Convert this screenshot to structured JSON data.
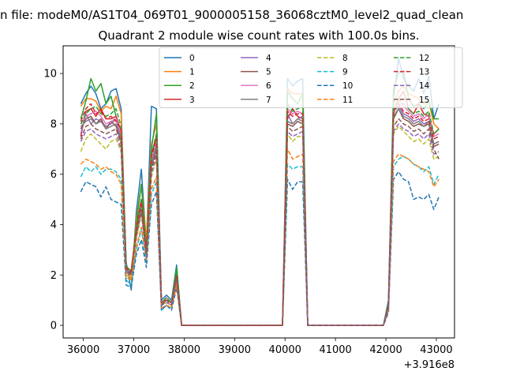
{
  "suptitle": "n file: modeM0/AS1T04_069T01_9000005158_36068cztM0_level2_quad_clean",
  "chart_data": {
    "type": "line",
    "title": "Quadrant 2 module wise count rates with 100.0s bins.",
    "xlabel": "",
    "ylabel": "",
    "x_offset_label": "+3.916e8",
    "xlim": [
      35600,
      43360
    ],
    "ylim": [
      -0.5,
      11.1
    ],
    "xticks": [
      36000,
      37000,
      38000,
      39000,
      40000,
      41000,
      42000,
      43000
    ],
    "yticks": [
      0,
      2,
      4,
      6,
      8,
      10
    ],
    "grid": false,
    "legend_position": "upper-center",
    "legend_columns": 4,
    "x": [
      35950,
      36050,
      36150,
      36250,
      36350,
      36450,
      36550,
      36650,
      36750,
      36850,
      36950,
      37050,
      37150,
      37250,
      37350,
      37450,
      37550,
      37650,
      37750,
      37850,
      37950,
      38050,
      38150,
      38250,
      38350,
      38450,
      38550,
      38650,
      38750,
      38850,
      38950,
      39050,
      39150,
      39250,
      39350,
      39450,
      39550,
      39650,
      39750,
      39850,
      39950,
      40050,
      40150,
      40250,
      40350,
      40450,
      40550,
      40650,
      40750,
      40850,
      40950,
      41050,
      41150,
      41250,
      41350,
      41450,
      41550,
      41650,
      41750,
      41850,
      41950,
      42050,
      42150,
      42250,
      42350,
      42450,
      42550,
      42650,
      42750,
      42850,
      42950,
      43050
    ],
    "series": [
      {
        "name": "0",
        "color": "#1f77b4",
        "dash": "solid",
        "values": [
          8.8,
          9.2,
          9.5,
          9.2,
          8.6,
          8.8,
          9.3,
          9.4,
          8.6,
          2.5,
          1.4,
          4.5,
          6.2,
          3.2,
          8.7,
          8.6,
          1.0,
          1.2,
          1.0,
          2.4,
          0,
          0,
          0,
          0,
          0,
          0,
          0,
          0,
          0,
          0,
          0,
          0,
          0,
          0,
          0,
          0,
          0,
          0,
          0,
          0,
          0,
          9.8,
          9.5,
          9.7,
          9.8,
          0,
          0,
          0,
          0,
          0,
          0,
          0,
          0,
          0,
          0,
          0,
          0,
          0,
          0,
          0,
          0,
          1.0,
          9.0,
          10.6,
          9.8,
          9.5,
          9.3,
          9.8,
          9.2,
          9.9,
          8.2,
          8.8
        ]
      },
      {
        "name": "1",
        "color": "#ff7f0e",
        "dash": "solid",
        "values": [
          8.7,
          9.0,
          9.0,
          8.9,
          8.5,
          8.7,
          8.6,
          9.1,
          8.4,
          2.3,
          1.8,
          4.2,
          5.6,
          3.4,
          7.2,
          8.0,
          0.8,
          1.0,
          0.9,
          2.2,
          0,
          0,
          0,
          0,
          0,
          0,
          0,
          0,
          0,
          0,
          0,
          0,
          0,
          0,
          0,
          0,
          0,
          0,
          0,
          0,
          0,
          9.4,
          9.2,
          9.2,
          9.2,
          0,
          0,
          0,
          0,
          0,
          0,
          0,
          0,
          0,
          0,
          0,
          0,
          0,
          0,
          0,
          0,
          0.8,
          8.8,
          9.3,
          9.5,
          9.2,
          9.1,
          9.0,
          8.8,
          8.9,
          8.0,
          7.8
        ]
      },
      {
        "name": "2",
        "color": "#2ca02c",
        "dash": "solid",
        "values": [
          8.2,
          8.9,
          9.8,
          9.3,
          9.6,
          8.8,
          9.1,
          8.3,
          7.6,
          2.4,
          2.0,
          4.0,
          5.6,
          3.0,
          7.0,
          8.4,
          0.9,
          1.1,
          0.9,
          2.3,
          0,
          0,
          0,
          0,
          0,
          0,
          0,
          0,
          0,
          0,
          0,
          0,
          0,
          0,
          0,
          0,
          0,
          0,
          0,
          0,
          0,
          9.3,
          9.0,
          8.8,
          9.2,
          0,
          0,
          0,
          0,
          0,
          0,
          0,
          0,
          0,
          0,
          0,
          0,
          0,
          0,
          0,
          0,
          0.9,
          9.4,
          10.0,
          10.1,
          9.0,
          8.7,
          8.8,
          8.6,
          8.9,
          8.2,
          8.2
        ]
      },
      {
        "name": "3",
        "color": "#d62728",
        "dash": "solid",
        "values": [
          7.5,
          8.5,
          8.6,
          8.3,
          8.6,
          8.2,
          8.2,
          8.3,
          7.7,
          2.2,
          2.2,
          3.8,
          5.0,
          2.9,
          6.8,
          7.5,
          0.9,
          1.0,
          0.9,
          2.0,
          0,
          0,
          0,
          0,
          0,
          0,
          0,
          0,
          0,
          0,
          0,
          0,
          0,
          0,
          0,
          0,
          0,
          0,
          0,
          0,
          0,
          8.2,
          8.6,
          8.3,
          8.2,
          0,
          0,
          0,
          0,
          0,
          0,
          0,
          0,
          0,
          0,
          0,
          0,
          0,
          0,
          0,
          0,
          0.8,
          8.4,
          9.0,
          9.3,
          8.6,
          8.4,
          8.8,
          8.4,
          8.3,
          7.6,
          7.8
        ]
      },
      {
        "name": "4",
        "color": "#9467bd",
        "dash": "solid",
        "values": [
          7.6,
          8.4,
          8.0,
          8.2,
          8.1,
          7.9,
          8.0,
          8.2,
          7.5,
          2.2,
          2.1,
          3.7,
          4.9,
          2.9,
          6.5,
          7.2,
          0.9,
          1.0,
          0.9,
          2.0,
          0,
          0,
          0,
          0,
          0,
          0,
          0,
          0,
          0,
          0,
          0,
          0,
          0,
          0,
          0,
          0,
          0,
          0,
          0,
          0,
          0,
          8.4,
          8.0,
          8.2,
          8.3,
          0,
          0,
          0,
          0,
          0,
          0,
          0,
          0,
          0,
          0,
          0,
          0,
          0,
          0,
          0,
          0,
          0.8,
          8.5,
          8.7,
          8.4,
          8.3,
          8.1,
          8.2,
          8.0,
          8.1,
          7.2,
          7.3
        ]
      },
      {
        "name": "5",
        "color": "#8c564b",
        "dash": "solid",
        "values": [
          7.8,
          8.2,
          8.3,
          8.0,
          8.2,
          7.8,
          8.1,
          7.9,
          7.3,
          2.1,
          2.0,
          3.6,
          4.7,
          2.8,
          6.3,
          7.0,
          0.9,
          1.0,
          0.9,
          1.9,
          0,
          0,
          0,
          0,
          0,
          0,
          0,
          0,
          0,
          0,
          0,
          0,
          0,
          0,
          0,
          0,
          0,
          0,
          0,
          0,
          0,
          8.0,
          7.9,
          8.1,
          8.0,
          0,
          0,
          0,
          0,
          0,
          0,
          0,
          0,
          0,
          0,
          0,
          0,
          0,
          0,
          0,
          0,
          0.8,
          8.2,
          8.6,
          8.2,
          8.1,
          7.9,
          8.0,
          7.9,
          8.0,
          7.1,
          7.2
        ]
      },
      {
        "name": "6",
        "color": "#e377c2",
        "dash": "solid",
        "values": [
          8.0,
          8.3,
          8.4,
          8.5,
          8.3,
          8.0,
          8.1,
          8.2,
          7.6,
          2.3,
          2.1,
          3.8,
          4.8,
          2.9,
          6.6,
          7.3,
          0.9,
          1.1,
          0.9,
          2.0,
          0,
          0,
          0,
          0,
          0,
          0,
          0,
          0,
          0,
          0,
          0,
          0,
          0,
          0,
          0,
          0,
          0,
          0,
          0,
          0,
          0,
          8.6,
          8.4,
          8.5,
          8.4,
          0,
          0,
          0,
          0,
          0,
          0,
          0,
          0,
          0,
          0,
          0,
          0,
          0,
          0,
          0,
          0,
          0.8,
          8.5,
          8.9,
          8.7,
          8.5,
          8.3,
          8.4,
          8.2,
          8.4,
          7.5,
          7.6
        ]
      },
      {
        "name": "7",
        "color": "#7f7f7f",
        "dash": "solid",
        "values": [
          7.9,
          8.1,
          8.2,
          8.0,
          8.1,
          7.8,
          7.9,
          8.0,
          7.4,
          2.2,
          2.0,
          3.7,
          4.6,
          2.8,
          6.4,
          7.1,
          0.9,
          1.0,
          0.9,
          1.9,
          0,
          0,
          0,
          0,
          0,
          0,
          0,
          0,
          0,
          0,
          0,
          0,
          0,
          0,
          0,
          0,
          0,
          0,
          0,
          0,
          0,
          8.1,
          8.0,
          8.2,
          8.1,
          0,
          0,
          0,
          0,
          0,
          0,
          0,
          0,
          0,
          0,
          0,
          0,
          0,
          0,
          0,
          0,
          0.8,
          8.3,
          8.6,
          8.3,
          8.2,
          8.0,
          8.1,
          7.9,
          8.1,
          7.2,
          7.3
        ]
      },
      {
        "name": "8",
        "color": "#bcbd22",
        "dash": "dashed",
        "values": [
          6.9,
          7.4,
          7.6,
          7.4,
          7.2,
          7.0,
          7.3,
          7.4,
          6.9,
          2.0,
          1.9,
          3.4,
          4.4,
          2.7,
          5.9,
          6.6,
          0.8,
          0.9,
          0.8,
          1.8,
          0,
          0,
          0,
          0,
          0,
          0,
          0,
          0,
          0,
          0,
          0,
          0,
          0,
          0,
          0,
          0,
          0,
          0,
          0,
          0,
          0,
          7.6,
          7.3,
          7.5,
          7.5,
          0,
          0,
          0,
          0,
          0,
          0,
          0,
          0,
          0,
          0,
          0,
          0,
          0,
          0,
          0,
          0,
          0.7,
          7.6,
          7.9,
          7.7,
          7.5,
          7.3,
          7.4,
          7.2,
          7.4,
          6.6,
          6.7
        ]
      },
      {
        "name": "9",
        "color": "#17becf",
        "dash": "dashed",
        "values": [
          5.9,
          6.3,
          6.1,
          6.3,
          6.0,
          6.2,
          6.2,
          6.1,
          5.8,
          1.8,
          1.6,
          3.0,
          3.8,
          2.5,
          5.2,
          5.7,
          0.6,
          0.8,
          0.7,
          1.6,
          0,
          0,
          0,
          0,
          0,
          0,
          0,
          0,
          0,
          0,
          0,
          0,
          0,
          0,
          0,
          0,
          0,
          0,
          0,
          0,
          0,
          6.4,
          6.2,
          6.3,
          6.3,
          0,
          0,
          0,
          0,
          0,
          0,
          0,
          0,
          0,
          0,
          0,
          0,
          0,
          0,
          0,
          0,
          0.6,
          6.3,
          6.6,
          6.7,
          6.6,
          6.4,
          6.3,
          6.1,
          6.3,
          5.6,
          6.0
        ]
      },
      {
        "name": "10",
        "color": "#1f77b4",
        "dash": "dashed",
        "values": [
          5.3,
          5.7,
          5.6,
          5.5,
          5.1,
          5.5,
          5.0,
          4.9,
          4.8,
          1.6,
          1.5,
          2.8,
          3.4,
          2.3,
          4.8,
          5.3,
          0.6,
          0.8,
          0.6,
          1.5,
          0,
          0,
          0,
          0,
          0,
          0,
          0,
          0,
          0,
          0,
          0,
          0,
          0,
          0,
          0,
          0,
          0,
          0,
          0,
          0,
          0,
          5.8,
          5.4,
          5.7,
          5.7,
          0,
          0,
          0,
          0,
          0,
          0,
          0,
          0,
          0,
          0,
          0,
          0,
          0,
          0,
          0,
          0,
          0.5,
          5.8,
          6.1,
          5.8,
          5.7,
          5.0,
          5.1,
          5.0,
          5.2,
          4.6,
          5.1
        ]
      },
      {
        "name": "11",
        "color": "#ff7f0e",
        "dash": "dashed",
        "values": [
          6.4,
          6.6,
          6.5,
          6.4,
          6.2,
          6.3,
          6.1,
          6.0,
          5.6,
          1.9,
          1.8,
          3.1,
          3.9,
          2.6,
          5.4,
          5.9,
          0.7,
          0.8,
          0.7,
          1.6,
          0,
          0,
          0,
          0,
          0,
          0,
          0,
          0,
          0,
          0,
          0,
          0,
          0,
          0,
          0,
          0,
          0,
          0,
          0,
          0,
          0,
          7.0,
          6.6,
          6.7,
          6.8,
          0,
          0,
          0,
          0,
          0,
          0,
          0,
          0,
          0,
          0,
          0,
          0,
          0,
          0,
          0,
          0,
          0.6,
          6.5,
          6.8,
          6.7,
          6.6,
          6.4,
          6.3,
          6.2,
          6.1,
          5.5,
          5.8
        ]
      },
      {
        "name": "12",
        "color": "#2ca02c",
        "dash": "dashed",
        "values": [
          8.0,
          8.4,
          8.6,
          8.7,
          8.4,
          8.3,
          8.4,
          8.6,
          7.9,
          2.4,
          2.1,
          3.9,
          5.0,
          3.0,
          6.8,
          7.6,
          0.9,
          1.1,
          0.9,
          2.1,
          0,
          0,
          0,
          0,
          0,
          0,
          0,
          0,
          0,
          0,
          0,
          0,
          0,
          0,
          0,
          0,
          0,
          0,
          0,
          0,
          0,
          8.8,
          8.5,
          8.6,
          8.7,
          0,
          0,
          0,
          0,
          0,
          0,
          0,
          0,
          0,
          0,
          0,
          0,
          0,
          0,
          0,
          0,
          0.8,
          8.6,
          9.0,
          8.8,
          8.6,
          8.4,
          8.5,
          8.3,
          8.5,
          7.6,
          7.8
        ]
      },
      {
        "name": "13",
        "color": "#d62728",
        "dash": "dashed",
        "values": [
          8.1,
          8.6,
          8.8,
          8.4,
          8.5,
          8.2,
          8.3,
          8.1,
          7.8,
          2.3,
          2.1,
          3.8,
          4.9,
          2.9,
          6.7,
          7.4,
          0.9,
          1.0,
          0.9,
          2.0,
          0,
          0,
          0,
          0,
          0,
          0,
          0,
          0,
          0,
          0,
          0,
          0,
          0,
          0,
          0,
          0,
          0,
          0,
          0,
          0,
          0,
          8.5,
          8.3,
          8.4,
          8.4,
          0,
          0,
          0,
          0,
          0,
          0,
          0,
          0,
          0,
          0,
          0,
          0,
          0,
          0,
          0,
          0,
          0.8,
          8.5,
          8.8,
          8.5,
          8.4,
          8.2,
          8.3,
          8.1,
          8.2,
          7.4,
          7.5
        ]
      },
      {
        "name": "14",
        "color": "#9467bd",
        "dash": "dashed",
        "values": [
          7.3,
          7.7,
          7.8,
          7.6,
          7.5,
          7.4,
          7.5,
          7.6,
          7.0,
          2.1,
          2.0,
          3.5,
          4.5,
          2.7,
          6.0,
          6.8,
          0.8,
          0.9,
          0.8,
          1.8,
          0,
          0,
          0,
          0,
          0,
          0,
          0,
          0,
          0,
          0,
          0,
          0,
          0,
          0,
          0,
          0,
          0,
          0,
          0,
          0,
          0,
          7.7,
          7.5,
          7.6,
          7.7,
          0,
          0,
          0,
          0,
          0,
          0,
          0,
          0,
          0,
          0,
          0,
          0,
          0,
          0,
          0,
          0,
          0.7,
          7.7,
          8.0,
          7.8,
          7.7,
          7.5,
          7.6,
          7.4,
          7.6,
          6.8,
          6.9
        ]
      },
      {
        "name": "15",
        "color": "#8c564b",
        "dash": "dashed",
        "values": [
          7.4,
          7.9,
          8.0,
          7.8,
          7.7,
          7.6,
          7.7,
          7.8,
          7.2,
          2.2,
          2.0,
          3.6,
          4.6,
          2.8,
          6.2,
          6.9,
          0.8,
          1.0,
          0.8,
          1.9,
          0,
          0,
          0,
          0,
          0,
          0,
          0,
          0,
          0,
          0,
          0,
          0,
          0,
          0,
          0,
          0,
          0,
          0,
          0,
          0,
          0,
          7.9,
          7.7,
          7.8,
          7.9,
          0,
          0,
          0,
          0,
          0,
          0,
          0,
          0,
          0,
          0,
          0,
          0,
          0,
          0,
          0,
          0,
          0.7,
          7.9,
          8.2,
          8.0,
          7.9,
          7.7,
          7.8,
          7.6,
          7.8,
          7.0,
          6.6
        ]
      }
    ]
  }
}
